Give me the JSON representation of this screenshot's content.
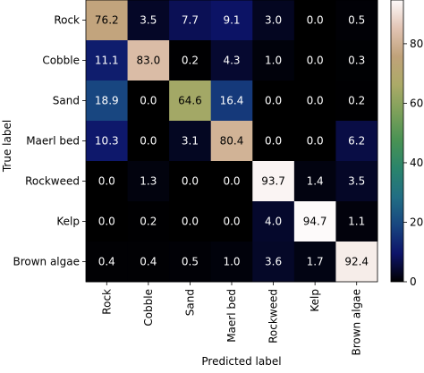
{
  "chart_data": {
    "type": "heatmap",
    "title": "",
    "xlabel": "Predicted label",
    "ylabel": "True label",
    "x_categories": [
      "Rock",
      "Cobble",
      "Sand",
      "Maerl bed",
      "Rockweed",
      "Kelp",
      "Brown algae"
    ],
    "y_categories": [
      "Rock",
      "Cobble",
      "Sand",
      "Maerl bed",
      "Rockweed",
      "Kelp",
      "Brown algae"
    ],
    "values": [
      [
        76.2,
        3.5,
        7.7,
        9.1,
        3.0,
        0.0,
        0.5
      ],
      [
        11.1,
        83.0,
        0.2,
        4.3,
        1.0,
        0.0,
        0.3
      ],
      [
        18.9,
        0.0,
        64.6,
        16.4,
        0.0,
        0.0,
        0.2
      ],
      [
        10.3,
        0.0,
        3.1,
        80.4,
        0.0,
        0.0,
        6.2
      ],
      [
        0.0,
        1.3,
        0.0,
        0.0,
        93.7,
        1.4,
        3.5
      ],
      [
        0.0,
        0.2,
        0.0,
        0.0,
        4.0,
        94.7,
        1.1
      ],
      [
        0.4,
        0.4,
        0.5,
        1.0,
        3.6,
        1.7,
        92.4
      ]
    ],
    "colorbar": {
      "colormap": "gist_earth",
      "range": [
        0,
        94.7
      ],
      "ticks": [
        0,
        20,
        40,
        60,
        80
      ]
    }
  }
}
